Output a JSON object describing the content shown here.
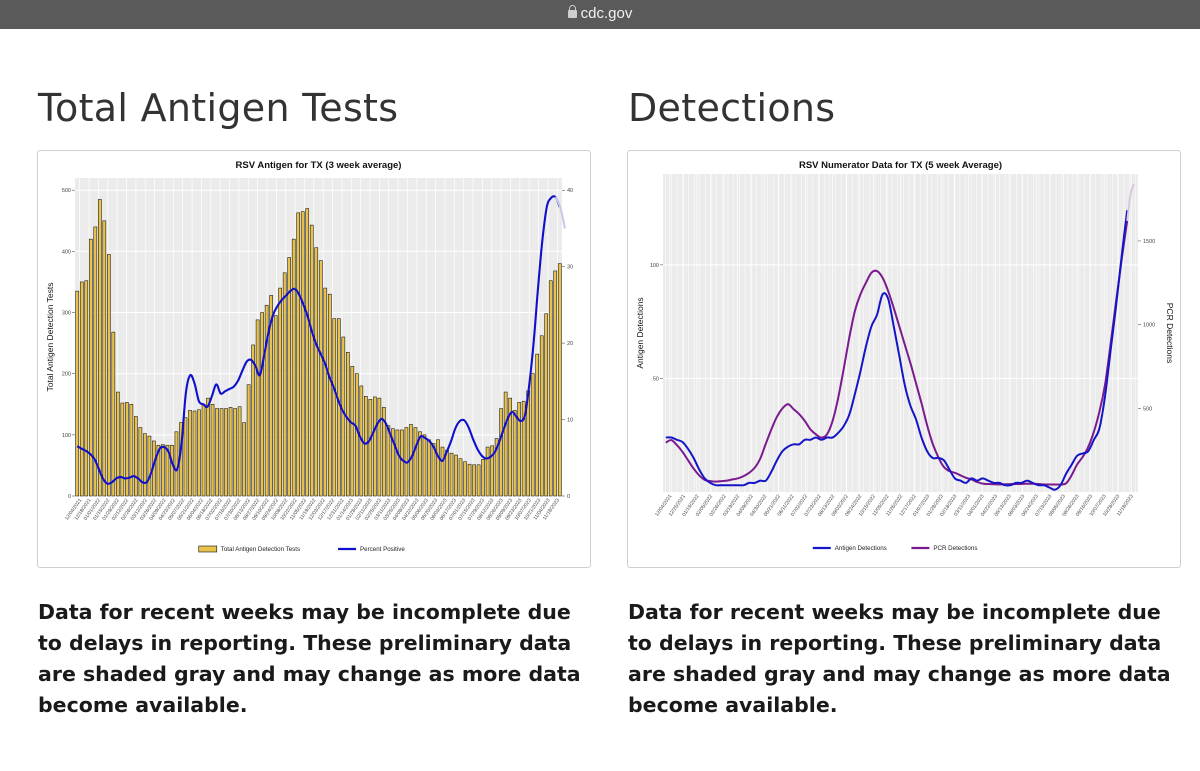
{
  "browser": {
    "url": "cdc.gov"
  },
  "sections": [
    {
      "heading": "Total Antigen Tests",
      "note": "Data for recent weeks may be incomplete due to delays in reporting. These preliminary data are shaded gray and may change as more data become available."
    },
    {
      "heading": "Detections",
      "note": "Data for recent weeks may be incomplete due to delays in reporting. These preliminary data are shaded gray and may change as more data become available."
    }
  ],
  "chart_data": [
    {
      "type": "bar",
      "title": "RSV Antigen for TX (3 week average)",
      "ylabel": "Total Antigen Detection Tests",
      "y2label": "Percent Positive",
      "ylim": [
        0,
        520
      ],
      "y2lim": [
        0,
        41.6
      ],
      "yticks": [
        0,
        100,
        200,
        300,
        400,
        500
      ],
      "y2ticks": [
        0,
        10,
        20,
        30,
        40
      ],
      "grid": true,
      "legend_position": "bottom",
      "x_tick_labels": [
        "12/04/2021",
        "12/18/2021",
        "01/01/2022",
        "01/15/2022",
        "01/29/2022",
        "02/12/2022",
        "02/26/2022",
        "03/12/2022",
        "03/26/2022",
        "04/09/2022",
        "04/23/2022",
        "05/07/2022",
        "05/21/2022",
        "06/04/2022",
        "06/18/2022",
        "07/02/2022",
        "07/16/2022",
        "07/30/2022",
        "08/13/2022",
        "08/27/2022",
        "09/10/2022",
        "09/24/2022",
        "10/08/2022",
        "10/22/2022",
        "11/05/2022",
        "11/19/2022",
        "12/03/2022",
        "12/17/2022",
        "12/31/2022",
        "01/14/2023",
        "01/28/2023",
        "02/11/2023",
        "02/25/2023",
        "03/11/2023",
        "03/25/2023",
        "04/08/2023",
        "04/22/2023",
        "05/06/2023",
        "05/20/2023",
        "06/03/2023",
        "06/17/2023",
        "07/01/2023",
        "07/15/2023",
        "07/29/2023",
        "08/12/2023",
        "08/26/2023",
        "09/09/2023",
        "09/23/2023",
        "10/07/2023",
        "10/21/2023",
        "11/04/2023",
        "11/18/2023"
      ],
      "series": [
        {
          "name": "Total Antigen Detection Tests",
          "kind": "bar",
          "axis": "left",
          "color": "#e8c24a",
          "values": [
            335,
            350,
            352,
            420,
            440,
            485,
            450,
            395,
            268,
            170,
            152,
            153,
            150,
            130,
            112,
            102,
            98,
            90,
            83,
            84,
            83,
            83,
            105,
            120,
            128,
            140,
            139,
            141,
            150,
            160,
            150,
            143,
            143,
            143,
            145,
            143,
            146,
            120,
            182,
            247,
            288,
            300,
            312,
            328,
            295,
            340,
            365,
            390,
            420,
            463,
            465,
            470,
            443,
            406,
            385,
            340,
            330,
            290,
            290,
            260,
            235,
            212,
            200,
            180,
            163,
            158,
            162,
            160,
            145,
            115,
            110,
            108,
            108,
            112,
            117,
            112,
            105,
            100,
            92,
            86,
            92,
            80,
            75,
            70,
            67,
            61,
            56,
            52,
            51,
            51,
            60,
            80,
            82,
            94,
            143,
            170,
            160,
            140,
            153,
            155,
            172,
            200,
            232,
            262,
            298,
            352,
            368,
            380
          ]
        },
        {
          "name": "Percent Positive",
          "kind": "line",
          "axis": "right",
          "color": "#1010cc",
          "values": [
            6.5,
            6.2,
            5.9,
            5.5,
            4.8,
            3.5,
            2.2,
            1.6,
            1.8,
            2.3,
            2.5,
            2.3,
            2.4,
            2.6,
            2.3,
            1.8,
            1.8,
            3.0,
            4.8,
            6.2,
            6.4,
            5.8,
            4.1,
            3.5,
            6.9,
            13.5,
            15.8,
            14.7,
            12.4,
            12.0,
            11.7,
            13.1,
            14.6,
            13.4,
            13.7,
            14.0,
            14.3,
            15.1,
            16.4,
            17.6,
            17.8,
            17.0,
            15.8,
            18.4,
            21.4,
            23.6,
            24.8,
            25.6,
            26.2,
            26.8,
            27.1,
            26.4,
            25.1,
            23.5,
            21.5,
            19.8,
            18.6,
            17.3,
            15.6,
            14.2,
            12.6,
            11.2,
            10.3,
            9.6,
            9.2,
            7.8,
            6.9,
            7.1,
            8.2,
            9.4,
            10.1,
            9.5,
            8.1,
            6.7,
            5.3,
            4.6,
            4.4,
            5.2,
            6.6,
            7.8,
            7.6,
            7.2,
            6.4,
            5.2,
            4.6,
            5.8,
            7.2,
            8.9,
            9.8,
            9.9,
            9.0,
            7.5,
            6.2,
            5.3,
            4.9,
            5.1,
            5.7,
            7.0,
            8.6,
            10.1,
            11.0,
            10.4,
            9.8,
            10.6,
            14.7,
            20.2,
            27.3,
            33.5,
            37.8,
            39.0,
            39.1,
            37.8
          ]
        },
        {
          "name": "Percent Positive (preliminary)",
          "kind": "line",
          "axis": "right",
          "color": "#c9c9e8",
          "values": [
            39.1,
            37.8,
            35.0
          ]
        }
      ]
    },
    {
      "type": "line",
      "title": "RSV Numerator Data for TX (5 week Average)",
      "ylabel": "Antigen Detections",
      "y2label": "PCR Detections",
      "ylim": [
        0,
        140
      ],
      "y2lim": [
        0,
        1900
      ],
      "yticks": [
        50,
        100
      ],
      "y2ticks": [
        500,
        1000,
        1500
      ],
      "grid": true,
      "legend_position": "bottom",
      "x_tick_labels": [
        "12/04/2021",
        "12/25/2021",
        "01/15/2022",
        "02/05/2022",
        "02/26/2022",
        "03/19/2022",
        "04/09/2022",
        "04/30/2022",
        "05/21/2022",
        "06/11/2022",
        "07/02/2022",
        "07/23/2022",
        "08/13/2022",
        "09/03/2022",
        "09/24/2022",
        "10/15/2022",
        "11/05/2022",
        "11/26/2022",
        "12/17/2022",
        "01/07/2023",
        "01/28/2023",
        "02/18/2023",
        "03/11/2023",
        "04/01/2023",
        "04/22/2023",
        "05/13/2023",
        "06/03/2023",
        "06/24/2023",
        "07/15/2023",
        "08/05/2023",
        "08/26/2023",
        "09/16/2023",
        "10/07/2023",
        "10/28/2023",
        "11/18/2023"
      ],
      "series": [
        {
          "name": "Antigen Detections",
          "axis": "left",
          "color": "#1515c8",
          "values": [
            24,
            24,
            23,
            22,
            19,
            15,
            10,
            6,
            4,
            3,
            3,
            3,
            3,
            3,
            3,
            4,
            4,
            5,
            5,
            9,
            14,
            18,
            20,
            21,
            21,
            23,
            23,
            24,
            23,
            24,
            24,
            26,
            29,
            34,
            43,
            53,
            64,
            73,
            78,
            87,
            85,
            73,
            60,
            47,
            38,
            32,
            24,
            18,
            15,
            15,
            14,
            10,
            6,
            5,
            4,
            6,
            5,
            6,
            5,
            4,
            4,
            3,
            3,
            4,
            4,
            5,
            4,
            3,
            3,
            2,
            1,
            3,
            8,
            12,
            16,
            17,
            18,
            23,
            28,
            42,
            62,
            82,
            104,
            124
          ]
        },
        {
          "name": "PCR Detections",
          "axis": "right",
          "color": "#7a1a8e",
          "values": [
            295,
            310,
            280,
            240,
            190,
            140,
            100,
            72,
            65,
            62,
            65,
            68,
            75,
            82,
            95,
            115,
            145,
            200,
            290,
            375,
            450,
            500,
            525,
            495,
            465,
            425,
            375,
            345,
            325,
            345,
            425,
            560,
            735,
            920,
            1080,
            1180,
            1250,
            1310,
            1320,
            1280,
            1200,
            1100,
            990,
            880,
            770,
            650,
            530,
            400,
            290,
            210,
            150,
            125,
            115,
            100,
            85,
            75,
            60,
            50,
            48,
            46,
            45,
            46,
            47,
            48,
            48,
            50,
            49,
            48,
            45,
            45,
            45,
            45,
            52,
            100,
            165,
            210,
            270,
            360,
            480,
            640,
            880,
            1140,
            1390,
            1620
          ]
        },
        {
          "name": "PCR Detections (preliminary)",
          "axis": "right",
          "color": "#d8c8dc",
          "values": [
            1620,
            1780,
            1840
          ]
        }
      ]
    }
  ]
}
